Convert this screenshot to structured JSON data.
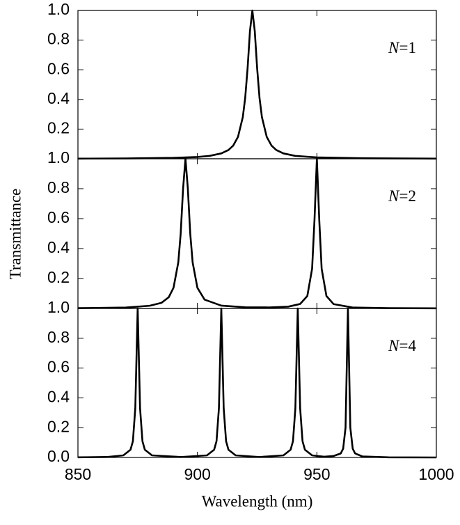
{
  "chart_data": [
    {
      "type": "line",
      "annotation": "N=1",
      "x": [
        850,
        870,
        890,
        900,
        905,
        910,
        913,
        915,
        917,
        919,
        920,
        921,
        922,
        923,
        924,
        925,
        926,
        927,
        929,
        931,
        933,
        936,
        941,
        950,
        970,
        1000
      ],
      "series": [
        {
          "color": "#000000",
          "values": [
            0.001,
            0.002,
            0.006,
            0.012,
            0.019,
            0.036,
            0.059,
            0.089,
            0.148,
            0.281,
            0.41,
            0.61,
            0.862,
            1,
            0.862,
            0.61,
            0.41,
            0.281,
            0.148,
            0.089,
            0.059,
            0.036,
            0.019,
            0.009,
            0.003,
            0.001
          ]
        }
      ],
      "xlim": [
        850,
        1000
      ],
      "ylim": [
        0,
        1
      ],
      "yticks": [
        0.2,
        0.4,
        0.6,
        0.8,
        {
          "value": 1,
          "label": "1.0"
        }
      ]
    },
    {
      "type": "line",
      "annotation": "N=2",
      "ylabel": "Transmittance",
      "x": [
        850,
        870,
        880,
        885,
        888,
        890,
        892,
        893,
        894,
        895,
        896,
        897,
        898,
        900,
        903,
        910,
        920,
        930,
        938,
        943,
        946,
        948,
        949,
        950,
        951,
        952,
        954,
        957,
        965,
        980,
        1000
      ],
      "series": [
        {
          "color": "#000000",
          "values": [
            0.002,
            0.006,
            0.018,
            0.038,
            0.075,
            0.138,
            0.308,
            0.5,
            0.8,
            1,
            0.8,
            0.5,
            0.308,
            0.138,
            0.059,
            0.019,
            0.008,
            0.007,
            0.012,
            0.03,
            0.083,
            0.265,
            0.59,
            1,
            0.59,
            0.265,
            0.083,
            0.029,
            0.006,
            0.002,
            0.001
          ]
        }
      ],
      "xlim": [
        850,
        1000
      ],
      "ylim": [
        0,
        1
      ],
      "yticks": [
        0.2,
        0.4,
        0.6,
        0.8,
        {
          "value": 1,
          "label": "1.0"
        }
      ]
    },
    {
      "type": "line",
      "annotation": "N=4",
      "xlabel": "Wavelength (nm)",
      "x": [
        850,
        862,
        869,
        872,
        873,
        874,
        875,
        876,
        877,
        878,
        881,
        893,
        904,
        907,
        908,
        909,
        910,
        911,
        912,
        913,
        916,
        926,
        936,
        939,
        940,
        941,
        942,
        943,
        944,
        945,
        948,
        953,
        957,
        960,
        961,
        962,
        963,
        964,
        965,
        966,
        969,
        980,
        1000
      ],
      "series": [
        {
          "color": "#000000",
          "values": [
            0.001,
            0.003,
            0.014,
            0.052,
            0.109,
            0.33,
            1,
            0.33,
            0.109,
            0.052,
            0.014,
            0.003,
            0.014,
            0.052,
            0.109,
            0.33,
            1,
            0.33,
            0.109,
            0.052,
            0.014,
            0.003,
            0.014,
            0.052,
            0.109,
            0.33,
            1,
            0.33,
            0.109,
            0.052,
            0.014,
            0.005,
            0.01,
            0.027,
            0.059,
            0.2,
            1,
            0.2,
            0.059,
            0.027,
            0.007,
            0.001,
            0
          ]
        }
      ],
      "xlim": [
        850,
        1000
      ],
      "ylim": [
        0,
        1
      ],
      "xticks": [
        850,
        900,
        950,
        1000
      ],
      "yticks": [
        {
          "value": 0,
          "label": "0.0"
        },
        0.2,
        0.4,
        0.6,
        0.8,
        {
          "value": 1,
          "label": "1.0"
        }
      ]
    }
  ]
}
